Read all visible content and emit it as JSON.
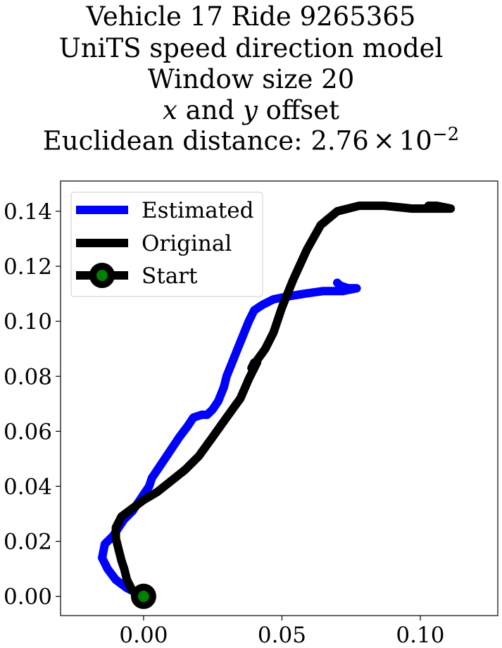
{
  "chart_data": {
    "type": "line",
    "title_lines": [
      "Vehicle 17 Ride 9265365",
      "UniTS speed direction model",
      "Window size 20"
    ],
    "title_offset_line": {
      "x": "x",
      "and": " and ",
      "y": "y",
      "rest": " offset"
    },
    "title_distance": {
      "prefix": "Euclidean distance: 2.76",
      "times": "×",
      "base": "10",
      "exponent": "−2"
    },
    "xlabel": "",
    "ylabel": "",
    "xlim": [
      -0.03,
      0.128
    ],
    "ylim": [
      -0.007,
      0.151
    ],
    "x_ticks": [
      {
        "value": 0.0,
        "label": "0.00"
      },
      {
        "value": 0.05,
        "label": "0.05"
      },
      {
        "value": 0.1,
        "label": "0.10"
      }
    ],
    "y_ticks": [
      {
        "value": 0.0,
        "label": "0.00"
      },
      {
        "value": 0.02,
        "label": "0.02"
      },
      {
        "value": 0.04,
        "label": "0.04"
      },
      {
        "value": 0.06,
        "label": "0.06"
      },
      {
        "value": 0.08,
        "label": "0.08"
      },
      {
        "value": 0.1,
        "label": "0.10"
      },
      {
        "value": 0.12,
        "label": "0.12"
      },
      {
        "value": 0.14,
        "label": "0.14"
      }
    ],
    "grid": false,
    "legend_position": "top-left",
    "series": [
      {
        "name": "Estimated",
        "color": "#0000ff",
        "points": [
          [
            0.0,
            0.0
          ],
          [
            -0.006,
            0.003
          ],
          [
            -0.01,
            0.006
          ],
          [
            -0.013,
            0.01
          ],
          [
            -0.015,
            0.014
          ],
          [
            -0.014,
            0.019
          ],
          [
            -0.011,
            0.022
          ],
          [
            -0.009,
            0.025
          ],
          [
            -0.007,
            0.028
          ],
          [
            -0.004,
            0.031
          ],
          [
            -0.002,
            0.034
          ],
          [
            0.0,
            0.037
          ],
          [
            0.002,
            0.04
          ],
          [
            0.003,
            0.043
          ],
          [
            0.005,
            0.046
          ],
          [
            0.009,
            0.052
          ],
          [
            0.013,
            0.058
          ],
          [
            0.016,
            0.062
          ],
          [
            0.018,
            0.065
          ],
          [
            0.021,
            0.066
          ],
          [
            0.023,
            0.066
          ],
          [
            0.025,
            0.068
          ],
          [
            0.027,
            0.071
          ],
          [
            0.029,
            0.076
          ],
          [
            0.03,
            0.08
          ],
          [
            0.032,
            0.085
          ],
          [
            0.034,
            0.09
          ],
          [
            0.036,
            0.095
          ],
          [
            0.038,
            0.1
          ],
          [
            0.04,
            0.104
          ],
          [
            0.043,
            0.106
          ],
          [
            0.047,
            0.108
          ],
          [
            0.052,
            0.109
          ],
          [
            0.058,
            0.11
          ],
          [
            0.065,
            0.111
          ],
          [
            0.072,
            0.111
          ],
          [
            0.077,
            0.112
          ],
          [
            0.074,
            0.112
          ],
          [
            0.071,
            0.113
          ],
          [
            0.07,
            0.114
          ]
        ]
      },
      {
        "name": "Original",
        "color": "#000000",
        "points": [
          [
            0.0,
            0.0
          ],
          [
            -0.004,
            0.002
          ],
          [
            -0.006,
            0.006
          ],
          [
            -0.007,
            0.01
          ],
          [
            -0.008,
            0.013
          ],
          [
            -0.009,
            0.017
          ],
          [
            -0.01,
            0.021
          ],
          [
            -0.01,
            0.025
          ],
          [
            -0.008,
            0.029
          ],
          [
            -0.004,
            0.032
          ],
          [
            0.0,
            0.035
          ],
          [
            0.005,
            0.038
          ],
          [
            0.01,
            0.042
          ],
          [
            0.015,
            0.046
          ],
          [
            0.02,
            0.051
          ],
          [
            0.025,
            0.058
          ],
          [
            0.03,
            0.065
          ],
          [
            0.035,
            0.072
          ],
          [
            0.038,
            0.079
          ],
          [
            0.041,
            0.085
          ],
          [
            0.04,
            0.085
          ],
          [
            0.039,
            0.083
          ],
          [
            0.044,
            0.09
          ],
          [
            0.047,
            0.096
          ],
          [
            0.05,
            0.105
          ],
          [
            0.054,
            0.115
          ],
          [
            0.059,
            0.126
          ],
          [
            0.064,
            0.135
          ],
          [
            0.07,
            0.14
          ],
          [
            0.078,
            0.142
          ],
          [
            0.087,
            0.142
          ],
          [
            0.097,
            0.141
          ],
          [
            0.106,
            0.141
          ],
          [
            0.111,
            0.141
          ],
          [
            0.106,
            0.142
          ],
          [
            0.103,
            0.142
          ]
        ]
      }
    ],
    "start_marker": {
      "name": "Start",
      "x": 0.0,
      "y": 0.0,
      "edge_color": "#000000",
      "face_color": "#008000"
    }
  }
}
